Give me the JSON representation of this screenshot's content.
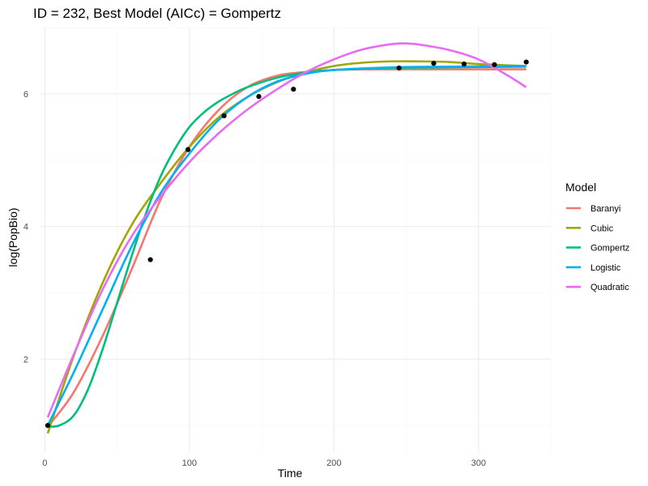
{
  "chart_data": {
    "type": "scatter",
    "title": "ID = 232, Best Model (AICc) = Gompertz",
    "xlabel": "Time",
    "ylabel": "log(PopBio)",
    "xlim": [
      -3,
      350
    ],
    "ylim": [
      0.6,
      7.0
    ],
    "x_ticks": [
      0,
      100,
      200,
      300
    ],
    "x_tick_labels": [
      "0",
      "100",
      "200",
      "300"
    ],
    "y_ticks": [
      2,
      4,
      6
    ],
    "y_tick_labels": [
      "2",
      "4",
      "6"
    ],
    "grid": true,
    "legend": {
      "title": "Model",
      "position": "right"
    },
    "points": {
      "x": [
        2,
        73,
        99,
        124,
        148,
        172,
        245,
        269,
        290,
        311,
        333
      ],
      "y": [
        1.0,
        3.5,
        5.16,
        5.67,
        5.96,
        6.07,
        6.39,
        6.46,
        6.45,
        6.44,
        6.48
      ]
    },
    "series": [
      {
        "name": "Baranyi",
        "color": "#F8766D",
        "x": [
          2,
          20,
          40,
          60,
          80,
          100,
          120,
          140,
          160,
          180,
          200,
          220,
          240,
          260,
          280,
          300,
          320,
          333
        ],
        "y": [
          0.98,
          1.5,
          2.35,
          3.35,
          4.4,
          5.2,
          5.75,
          6.1,
          6.27,
          6.33,
          6.36,
          6.37,
          6.37,
          6.37,
          6.37,
          6.37,
          6.37,
          6.37
        ]
      },
      {
        "name": "Cubic",
        "color": "#A3A500",
        "x": [
          2,
          20,
          40,
          60,
          80,
          100,
          120,
          140,
          160,
          180,
          200,
          220,
          240,
          260,
          280,
          300,
          320,
          333
        ],
        "y": [
          0.88,
          2.05,
          3.15,
          4.02,
          4.65,
          5.2,
          5.64,
          5.95,
          6.17,
          6.32,
          6.42,
          6.47,
          6.49,
          6.49,
          6.48,
          6.45,
          6.43,
          6.42
        ]
      },
      {
        "name": "Gompertz",
        "color": "#00BF7D",
        "x": [
          2,
          10,
          20,
          30,
          40,
          50,
          60,
          70,
          80,
          90,
          100,
          110,
          120,
          130,
          140,
          160,
          180,
          200,
          240,
          280,
          333
        ],
        "y": [
          0.98,
          1.0,
          1.15,
          1.55,
          2.15,
          2.85,
          3.55,
          4.2,
          4.75,
          5.17,
          5.5,
          5.72,
          5.88,
          6.0,
          6.1,
          6.24,
          6.32,
          6.36,
          6.39,
          6.4,
          6.41
        ]
      },
      {
        "name": "Logistic",
        "color": "#00B0F6",
        "x": [
          2,
          20,
          40,
          60,
          80,
          100,
          120,
          140,
          160,
          180,
          200,
          240,
          280,
          333
        ],
        "y": [
          1.0,
          1.8,
          2.75,
          3.7,
          4.5,
          5.1,
          5.6,
          5.95,
          6.18,
          6.3,
          6.36,
          6.4,
          6.41,
          6.42
        ]
      },
      {
        "name": "Quadratic",
        "color": "#E76BF3",
        "x": [
          2,
          20,
          40,
          60,
          80,
          100,
          120,
          140,
          160,
          180,
          200,
          220,
          240,
          250,
          260,
          280,
          300,
          320,
          333
        ],
        "y": [
          1.12,
          2.07,
          3.05,
          3.85,
          4.45,
          4.97,
          5.4,
          5.76,
          6.06,
          6.32,
          6.52,
          6.67,
          6.75,
          6.76,
          6.74,
          6.66,
          6.52,
          6.28,
          6.1
        ]
      }
    ]
  }
}
